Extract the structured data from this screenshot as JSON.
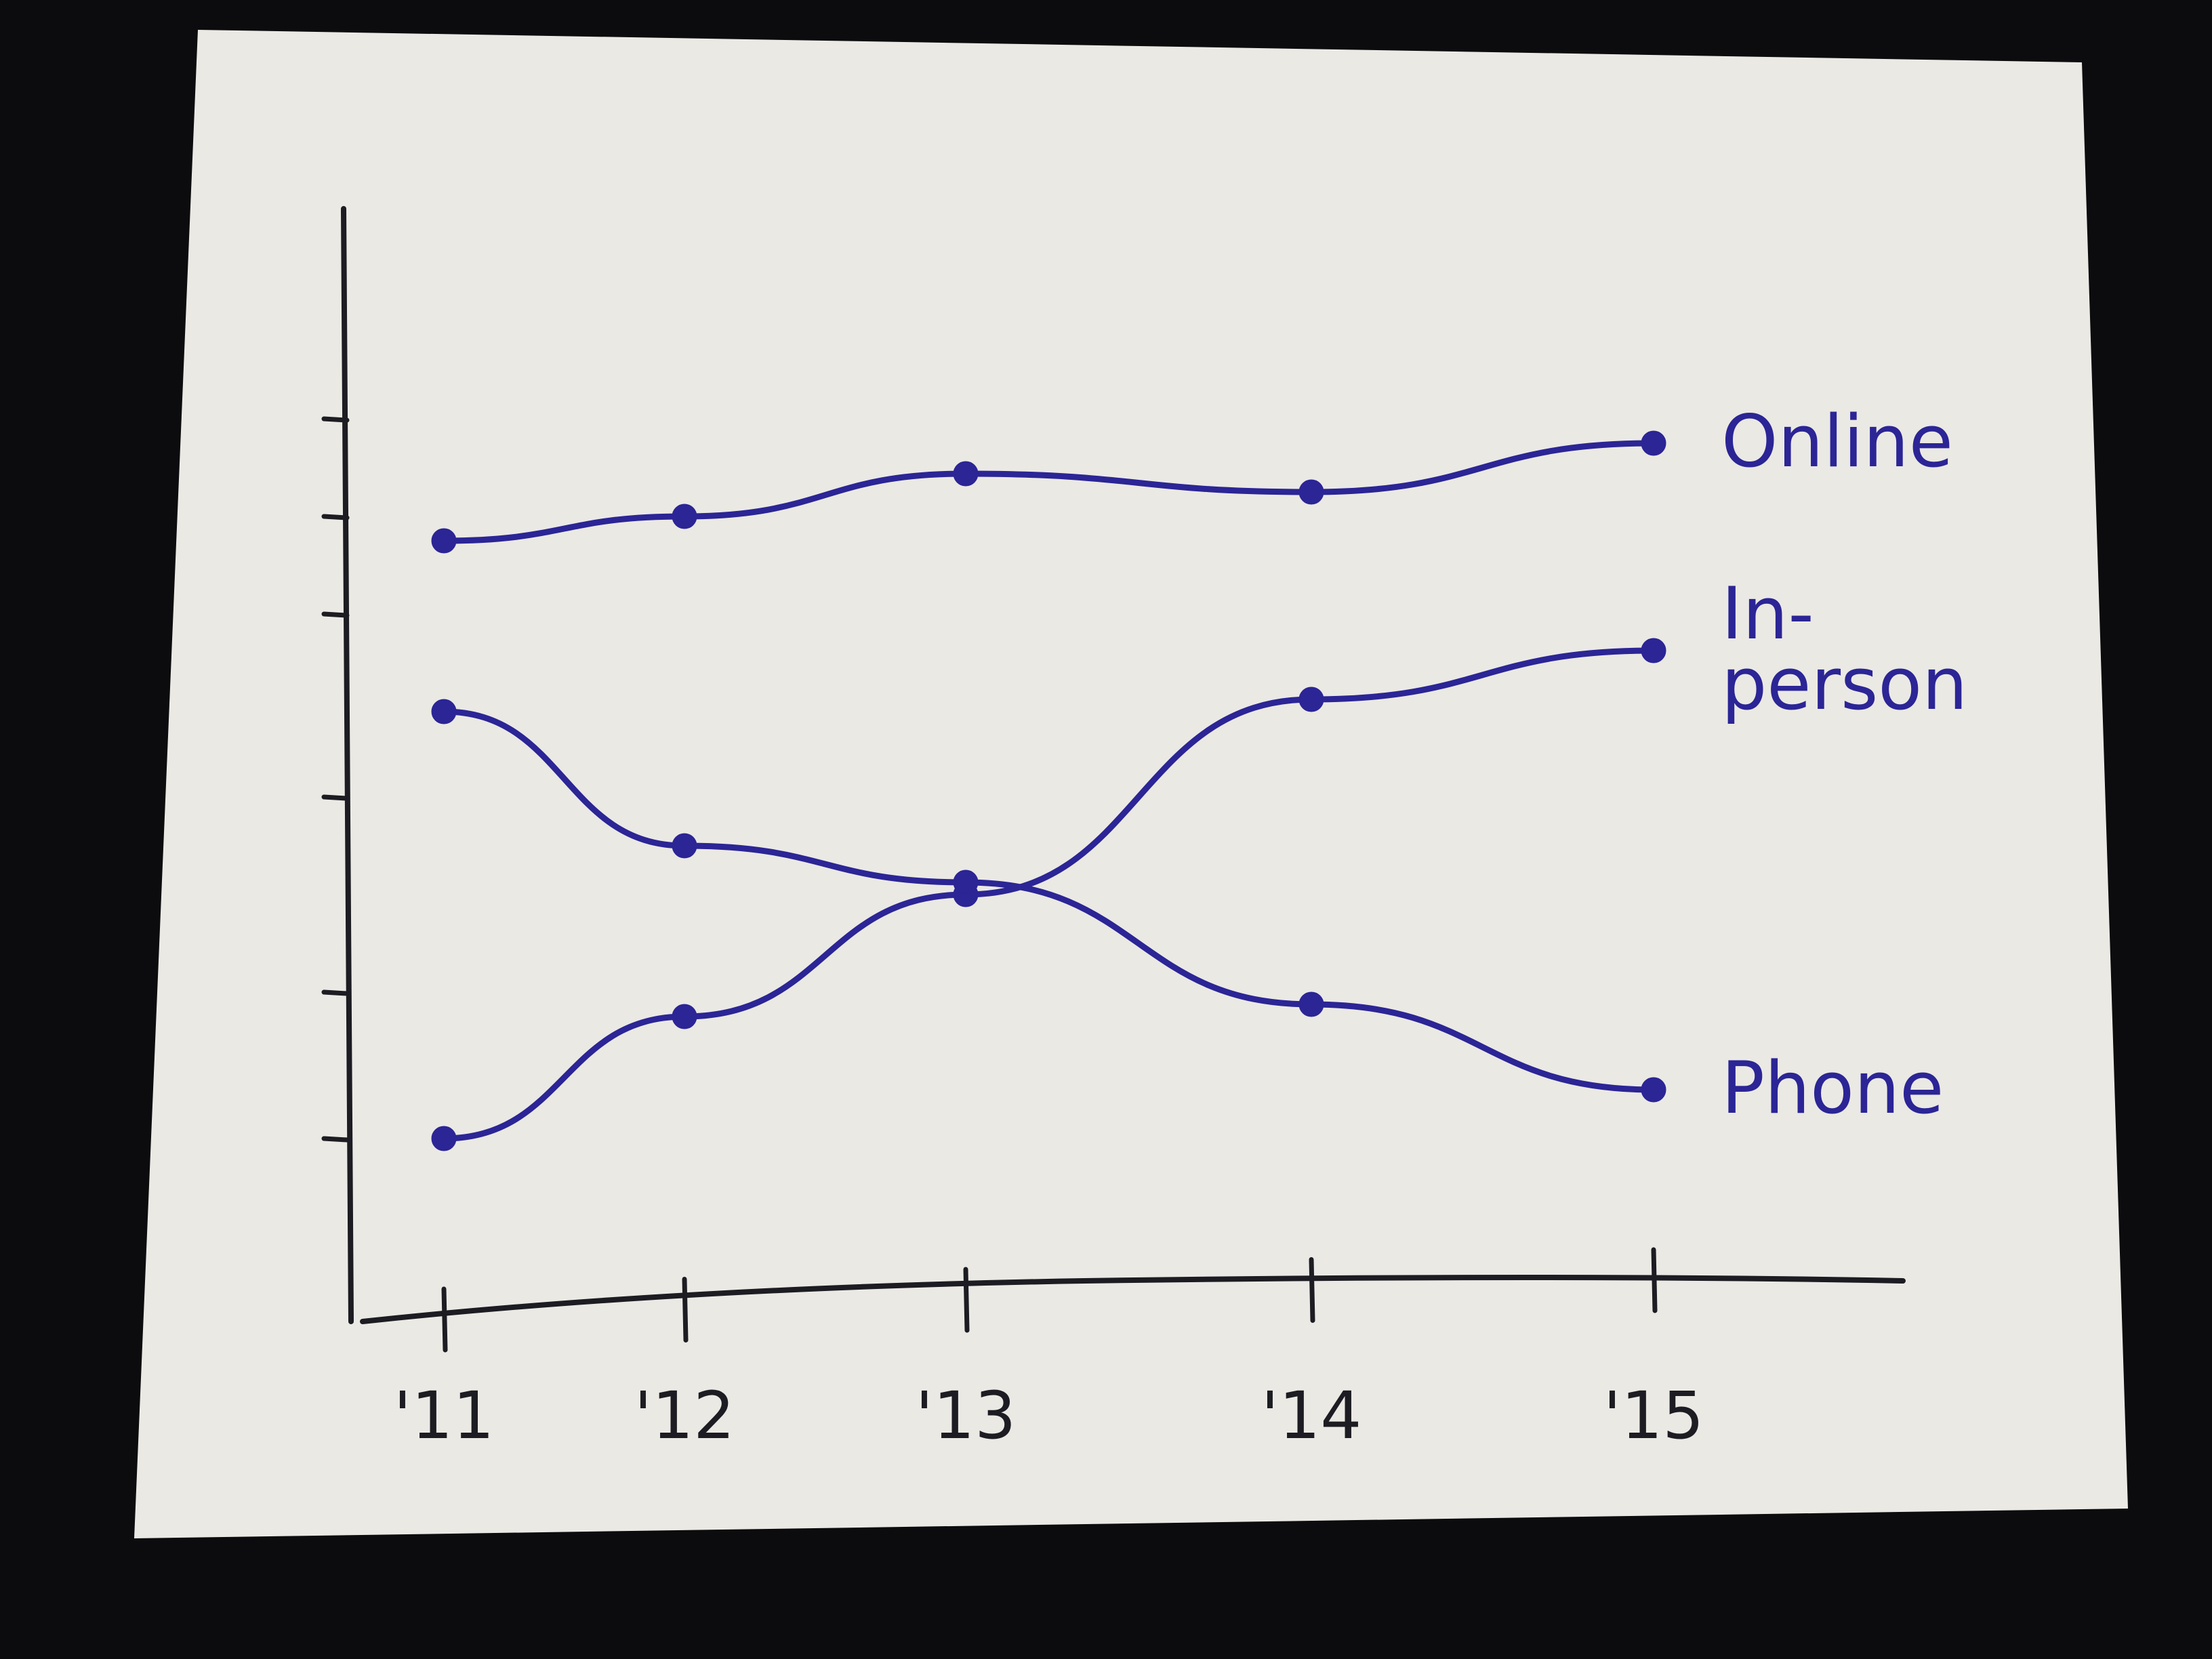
{
  "chart_data": {
    "type": "line",
    "categories": [
      "'11",
      "'12",
      "'13",
      "'14",
      "'15"
    ],
    "series": [
      {
        "name": "Online",
        "values": [
          6.4,
          6.6,
          6.95,
          6.8,
          7.2
        ]
      },
      {
        "name": "In-person",
        "values": [
          1.5,
          2.5,
          3.5,
          5.1,
          5.5
        ]
      },
      {
        "name": "Phone",
        "values": [
          5.0,
          3.9,
          3.6,
          2.6,
          1.9
        ]
      }
    ],
    "series_labels": [
      {
        "series": "Online",
        "lines": [
          "Online"
        ]
      },
      {
        "series": "In-person",
        "lines": [
          "In-",
          "person"
        ]
      },
      {
        "series": "Phone",
        "lines": [
          "Phone"
        ]
      }
    ],
    "title": "",
    "xlabel": "",
    "ylabel": "",
    "ylim": [
      0,
      8
    ],
    "y_ticks": [
      1.5,
      2.7,
      4.3,
      5.8,
      6.6,
      7.4
    ],
    "y_tick_labels_shown": false,
    "grid": false,
    "legend": "direct labels at line ends",
    "colors": {
      "ink": "#2b2596",
      "axis": "#1c1c22",
      "paper": "#ebe9e4",
      "background": "#0c0c0e"
    }
  }
}
